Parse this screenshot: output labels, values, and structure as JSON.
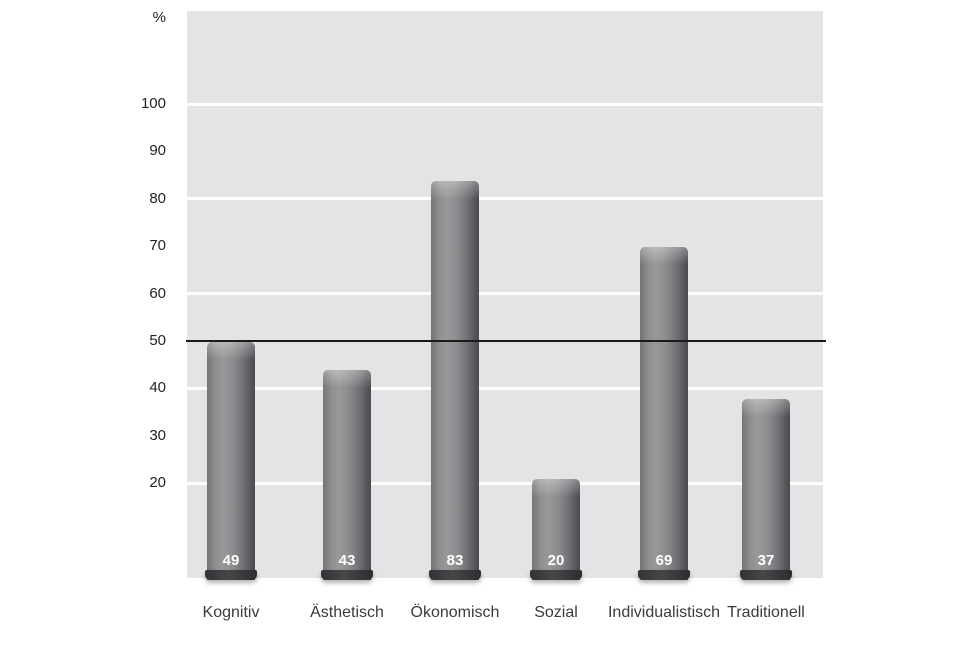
{
  "chart_data": {
    "type": "bar",
    "title": "",
    "ylabel": "%",
    "xlabel": "",
    "categories": [
      "Kognitiv",
      "Ästhetisch",
      "Ökonomisch",
      "Sozial",
      "Individualistisch",
      "Traditionell"
    ],
    "values": [
      49,
      43,
      83,
      20,
      69,
      37
    ],
    "value_labels": [
      "49",
      "43",
      "83",
      "20",
      "69",
      "37"
    ],
    "ylim": [
      0,
      120
    ],
    "yticks": [
      20,
      30,
      40,
      50,
      60,
      70,
      80,
      90,
      100
    ],
    "gridlines_at": [
      20,
      40,
      60,
      80,
      100
    ],
    "reference_line_value": 50,
    "grid": true,
    "legend": false,
    "colors": {
      "plot_background": "#e3e4e6",
      "gridline": "#ffffff",
      "reference_line": "#1a1a1c",
      "bar_light": "#98989b",
      "bar_mid": "#7e7e81",
      "bar_dark": "#4b4b4f",
      "bar_base": "#3a3a3d",
      "value_label": "#ffffff",
      "tick_label": "#232325",
      "category_label": "#3b3b3d"
    }
  }
}
